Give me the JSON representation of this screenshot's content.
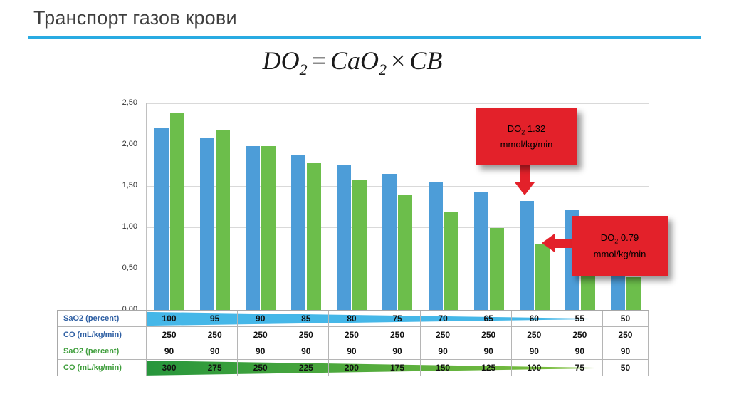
{
  "page": {
    "title": "Транспорт газов крови"
  },
  "formula": {
    "lhs": "DO",
    "lhs_sub": "2",
    "equals": "=",
    "rhs": "CaO",
    "rhs_sub": "2",
    "times": "×",
    "factor": "CB"
  },
  "chart_data": {
    "type": "bar",
    "categories": [
      100,
      95,
      90,
      85,
      80,
      75,
      70,
      65,
      60,
      55,
      50
    ],
    "series": [
      {
        "name": "blue",
        "color": "#4D9DD8",
        "values": [
          2.2,
          2.09,
          1.98,
          1.87,
          1.76,
          1.65,
          1.54,
          1.43,
          1.32,
          1.21,
          1.1
        ]
      },
      {
        "name": "green",
        "color": "#6CBE4B",
        "values": [
          2.38,
          2.18,
          1.98,
          1.78,
          1.58,
          1.39,
          1.19,
          0.99,
          0.79,
          0.59,
          0.4
        ]
      }
    ],
    "title": "",
    "xlabel": "",
    "ylabel": "",
    "ylim": [
      0,
      2.5
    ],
    "yticks": [
      "2,50",
      "2,00",
      "1,50",
      "1,00",
      "0,50",
      "0,00"
    ],
    "grid": true,
    "legend": false
  },
  "callouts": [
    {
      "prefix": "DO",
      "sub": "2",
      "value": "1.32",
      "unit": "mmol/kg/min"
    },
    {
      "prefix": "DO",
      "sub": "2",
      "value": "0.79",
      "unit": "mmol/kg/min"
    }
  ],
  "table": {
    "rows": [
      {
        "label": "SaO2 (percent)",
        "label_color": "#2E5FA3",
        "wedge": "blue",
        "values": [
          "100",
          "95",
          "90",
          "85",
          "80",
          "75",
          "70",
          "65",
          "60",
          "55",
          "50"
        ]
      },
      {
        "label": "CO (mL/kg/min)",
        "label_color": "#2E5FA3",
        "wedge": null,
        "values": [
          "250",
          "250",
          "250",
          "250",
          "250",
          "250",
          "250",
          "250",
          "250",
          "250",
          "250"
        ]
      },
      {
        "label": "SaO2 (percent)",
        "label_color": "#3F9E3C",
        "wedge": null,
        "values": [
          "90",
          "90",
          "90",
          "90",
          "90",
          "90",
          "90",
          "90",
          "90",
          "90",
          "90"
        ]
      },
      {
        "label": "CO (mL/kg/min)",
        "label_color": "#3F9E3C",
        "wedge": "green",
        "values": [
          "300",
          "275",
          "250",
          "225",
          "200",
          "175",
          "150",
          "125",
          "100",
          "75",
          "50"
        ]
      }
    ]
  },
  "colors": {
    "accent_rule": "#29ABE2",
    "callout_red": "#E3212A",
    "wedge_blue": "#45B7E8",
    "wedge_green_dark": "#27963C",
    "wedge_green_light": "#8CC63F"
  }
}
